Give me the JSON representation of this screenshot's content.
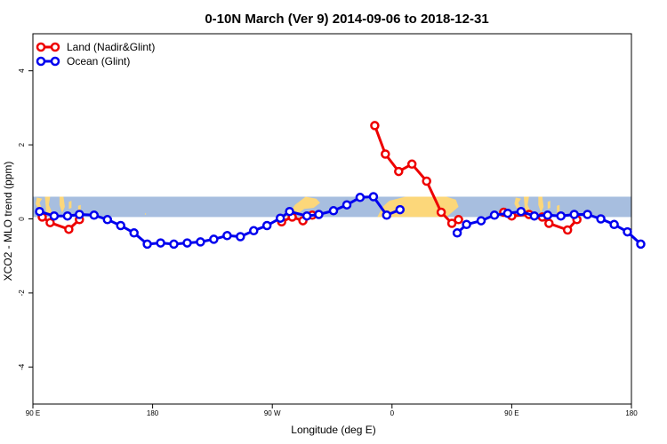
{
  "chart_data": {
    "type": "line",
    "title": "0-10N March (Ver 9)   2014-09-06 to 2018-12-31",
    "xlabel": "Longitude (deg E)",
    "ylabel": "XCO2 - MLO trend (ppm)",
    "xlim": [
      90,
      540
    ],
    "ylim": [
      -5,
      5
    ],
    "x_ticks": [
      {
        "value": 90,
        "label": "90 E"
      },
      {
        "value": 180,
        "label": "180"
      },
      {
        "value": 270,
        "label": "90 W"
      },
      {
        "value": 360,
        "label": "0"
      },
      {
        "value": 450,
        "label": "90 E"
      },
      {
        "value": 540,
        "label": "180"
      }
    ],
    "y_ticks": [
      {
        "value": -4,
        "label": "-4"
      },
      {
        "value": -2,
        "label": "-2"
      },
      {
        "value": 0,
        "label": "0"
      },
      {
        "value": 2,
        "label": "2"
      },
      {
        "value": 4,
        "label": "4"
      }
    ],
    "legend_position": "top-left",
    "colors": {
      "land": "#ee0000",
      "ocean": "#0000ee",
      "map_ocean": "#a7bedf",
      "map_land": "#fcd77a"
    },
    "map_band": {
      "lat_min": 0,
      "lat_max": 10,
      "y_range": [
        0.05,
        0.6
      ]
    },
    "series": [
      {
        "name": "Land (Nadir&Glint)",
        "color": "#ee0000",
        "segments": [
          [
            [
              97,
              0.05
            ],
            [
              103,
              -0.1
            ],
            [
              117,
              -0.28
            ],
            [
              125,
              -0.02
            ]
          ],
          [
            [
              277,
              -0.08
            ],
            [
              285,
              0.05
            ],
            [
              293,
              -0.05
            ],
            [
              300,
              0.1
            ]
          ],
          [
            [
              347,
              2.52
            ],
            [
              355,
              1.75
            ],
            [
              365,
              1.28
            ],
            [
              375,
              1.48
            ],
            [
              386,
              1.02
            ],
            [
              397,
              0.18
            ],
            [
              405,
              -0.12
            ],
            [
              410,
              -0.02
            ]
          ],
          [
            [
              444,
              0.18
            ],
            [
              450,
              0.08
            ],
            [
              463,
              0.12
            ],
            [
              473,
              0.05
            ],
            [
              478,
              -0.12
            ],
            [
              492,
              -0.3
            ],
            [
              499,
              -0.02
            ]
          ]
        ]
      },
      {
        "name": "Ocean (Glint)",
        "color": "#0000ee",
        "segments": [
          [
            [
              95,
              0.2
            ],
            [
              106,
              0.08
            ],
            [
              116,
              0.08
            ],
            [
              125,
              0.12
            ],
            [
              136,
              0.1
            ],
            [
              146,
              -0.02
            ],
            [
              156,
              -0.18
            ],
            [
              166,
              -0.38
            ],
            [
              176,
              -0.68
            ],
            [
              186,
              -0.65
            ],
            [
              196,
              -0.68
            ],
            [
              206,
              -0.65
            ],
            [
              216,
              -0.62
            ],
            [
              226,
              -0.55
            ],
            [
              236,
              -0.45
            ],
            [
              246,
              -0.48
            ],
            [
              256,
              -0.32
            ],
            [
              266,
              -0.18
            ],
            [
              276,
              0.02
            ],
            [
              283,
              0.2
            ],
            [
              296,
              0.08
            ],
            [
              305,
              0.12
            ],
            [
              316,
              0.22
            ],
            [
              326,
              0.38
            ],
            [
              336,
              0.58
            ],
            [
              346,
              0.6
            ],
            [
              356,
              0.1
            ],
            [
              366,
              0.25
            ]
          ],
          [
            [
              409,
              -0.38
            ],
            [
              416,
              -0.15
            ],
            [
              427,
              -0.05
            ],
            [
              437,
              0.1
            ],
            [
              447,
              0.15
            ],
            [
              457,
              0.2
            ],
            [
              467,
              0.08
            ],
            [
              477,
              0.1
            ],
            [
              487,
              0.08
            ],
            [
              497,
              0.12
            ],
            [
              507,
              0.12
            ],
            [
              517,
              0.0
            ],
            [
              527,
              -0.15
            ],
            [
              537,
              -0.35
            ],
            [
              547,
              -0.68
            ]
          ]
        ]
      }
    ]
  }
}
